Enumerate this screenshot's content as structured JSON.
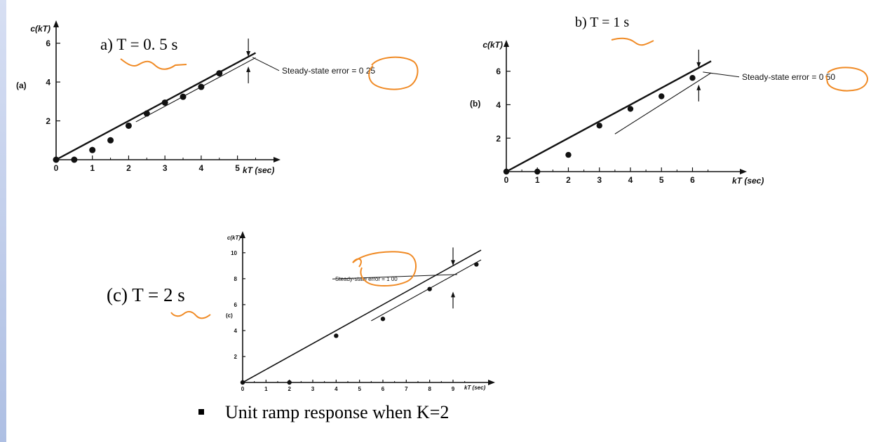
{
  "panels": [
    {
      "title": "a) T = 0. 5 s",
      "panel_tag": "(a)",
      "ylabel": "c(kT)",
      "xlabel": "kT (sec)",
      "annotation": "Steady-state error = 0 25"
    },
    {
      "title": "b) T = 1 s",
      "panel_tag": "(b)",
      "ylabel": "c(kT)",
      "xlabel": "kT (sec)",
      "annotation": "Steady-state error = 0 50"
    },
    {
      "title": "(c) T = 2 s",
      "panel_tag": "(c)",
      "ylabel": "c(kT)",
      "xlabel": "kT (sec)",
      "annotation": "Steady-state error = 1 00"
    }
  ],
  "bullet": "Unit ramp response when K=2",
  "colors": {
    "ink": "#111111",
    "highlight": "#f08a24",
    "left_strip": "#b9c8ea"
  },
  "chart_data": [
    {
      "type": "scatter",
      "title": "a) T = 0. 5 s",
      "xlabel": "kT (sec)",
      "ylabel": "c(kT)",
      "xlim": [
        0,
        5.8
      ],
      "ylim": [
        0,
        6.6
      ],
      "x_ticks": [
        0,
        1,
        2,
        3,
        4,
        5
      ],
      "y_ticks": [
        2,
        4,
        6
      ],
      "grid": false,
      "ramp_input": {
        "x": [
          0,
          5.5
        ],
        "y": [
          0,
          5.5
        ]
      },
      "offset_line": {
        "x": [
          2.2,
          5.5
        ],
        "y": [
          1.95,
          5.25
        ]
      },
      "samples": {
        "x": [
          0,
          0.5,
          1,
          1.5,
          2,
          2.5,
          3,
          3.5,
          4,
          4.5
        ],
        "y": [
          0,
          0,
          0.5,
          1.0,
          1.75,
          2.38,
          2.94,
          3.24,
          3.75,
          4.45
        ]
      },
      "steady_state_error": 0.25,
      "error_marker_x": 5.3
    },
    {
      "type": "scatter",
      "title": "b) T = 1 s",
      "xlabel": "kT (sec)",
      "ylabel": "c(kT)",
      "xlim": [
        0,
        7.3
      ],
      "ylim": [
        0,
        7.2
      ],
      "x_ticks": [
        0,
        1,
        2,
        3,
        4,
        5,
        6
      ],
      "y_ticks": [
        2,
        4,
        6
      ],
      "grid": false,
      "ramp_input": {
        "x": [
          0,
          6.6
        ],
        "y": [
          0,
          6.6
        ]
      },
      "offset_line": {
        "x": [
          3.5,
          6.6
        ],
        "y": [
          2.25,
          5.9
        ]
      },
      "samples": {
        "x": [
          0,
          1,
          2,
          3,
          4,
          5,
          6
        ],
        "y": [
          0,
          0,
          1.0,
          2.75,
          3.75,
          4.5,
          5.6
        ]
      },
      "steady_state_error": 0.5,
      "error_marker_x": 6.2
    },
    {
      "type": "scatter",
      "title": "(c) T = 2 s",
      "xlabel": "kT (sec)",
      "ylabel": "c(kT)",
      "xlim": [
        0,
        10.2
      ],
      "ylim": [
        0,
        10.8
      ],
      "x_ticks": [
        0,
        1,
        2,
        3,
        4,
        5,
        6,
        7,
        8,
        9
      ],
      "y_ticks": [
        2,
        4,
        6,
        8,
        10
      ],
      "grid": false,
      "ramp_input": {
        "x": [
          0,
          10.2
        ],
        "y": [
          0,
          10.2
        ]
      },
      "offset_line": {
        "x": [
          5.5,
          10.2
        ],
        "y": [
          4.75,
          9.45
        ]
      },
      "samples": {
        "x": [
          0,
          2,
          4,
          6,
          8,
          10
        ],
        "y": [
          0,
          0,
          3.6,
          4.9,
          7.2,
          9.1
        ]
      },
      "steady_state_error": 1.0,
      "error_marker_x": 9
    }
  ]
}
